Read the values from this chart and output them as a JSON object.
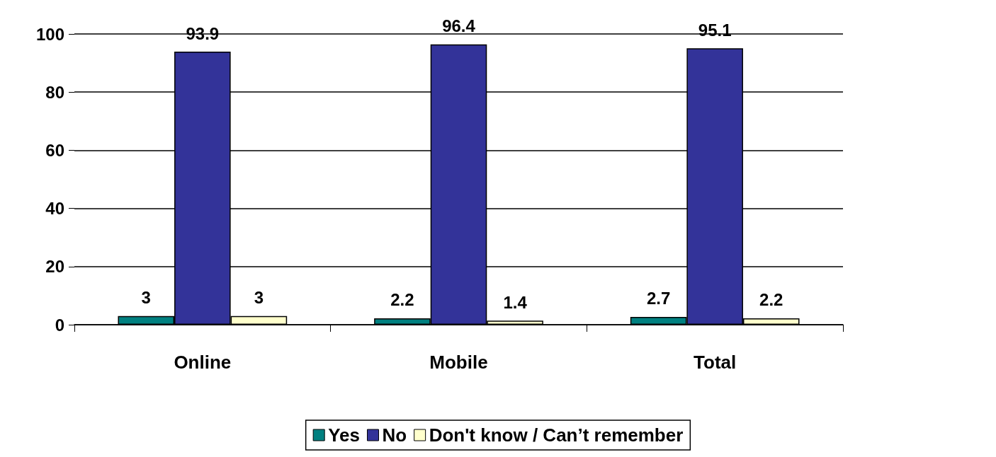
{
  "chart_data": {
    "type": "bar",
    "categories": [
      "Online",
      "Mobile",
      "Total"
    ],
    "series": [
      {
        "name": "Yes",
        "color": "#008080",
        "values": [
          3,
          2.2,
          2.7
        ]
      },
      {
        "name": "No",
        "color": "#333399",
        "values": [
          93.9,
          96.4,
          95.1
        ]
      },
      {
        "name": "Don't know / Can’t remember",
        "color": "#ffffcc",
        "values": [
          3,
          1.4,
          2.2
        ]
      }
    ],
    "ylim": [
      0,
      100
    ],
    "yticks": [
      0,
      20,
      40,
      60,
      80,
      100
    ],
    "grid": "y",
    "legend": "bottom",
    "data_labels": true
  }
}
